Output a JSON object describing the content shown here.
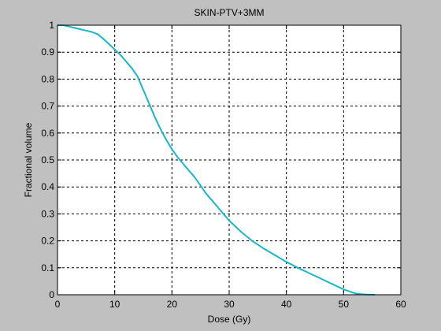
{
  "chart_data": {
    "type": "line",
    "title": "SKIN-PTV+3MM",
    "xlabel": "Dose (Gy)",
    "ylabel": "Fractional volume",
    "xlim": [
      0,
      60
    ],
    "ylim": [
      0,
      1
    ],
    "xticks": [
      0,
      10,
      20,
      30,
      40,
      50,
      60
    ],
    "yticks": [
      0,
      0.1,
      0.2,
      0.3,
      0.4,
      0.5,
      0.6,
      0.7,
      0.8,
      0.9,
      1
    ],
    "xtick_labels": [
      "0",
      "10",
      "20",
      "30",
      "40",
      "50",
      "60"
    ],
    "ytick_labels": [
      "0",
      "0.1",
      "0.2",
      "0.3",
      "0.4",
      "0.5",
      "0.6",
      "0.7",
      "0.8",
      "0.9",
      "1"
    ],
    "grid": true,
    "grid_style": "dashed",
    "colors": {
      "figure_bg": "#c0c0c0",
      "axes_bg": "#ffffff",
      "line": "#17b8c8",
      "grid": "#000000"
    },
    "series": [
      {
        "x": [
          0,
          1,
          2,
          3,
          4,
          5,
          6,
          7,
          8,
          9,
          10,
          11,
          12,
          13,
          14,
          15,
          16,
          17,
          18,
          19,
          20,
          21,
          22,
          23,
          24,
          25,
          26,
          27,
          28,
          29,
          30,
          32,
          34,
          36,
          38,
          40,
          42,
          44,
          46,
          48,
          50,
          52,
          53,
          54,
          55,
          55.5
        ],
        "y": [
          1.0,
          1.0,
          0.995,
          0.99,
          0.985,
          0.98,
          0.975,
          0.967,
          0.95,
          0.93,
          0.91,
          0.89,
          0.865,
          0.84,
          0.81,
          0.76,
          0.71,
          0.66,
          0.615,
          0.575,
          0.54,
          0.51,
          0.485,
          0.46,
          0.435,
          0.405,
          0.375,
          0.35,
          0.325,
          0.3,
          0.275,
          0.235,
          0.2,
          0.172,
          0.147,
          0.122,
          0.1,
          0.08,
          0.06,
          0.04,
          0.02,
          0.005,
          0.002,
          0.001,
          0.0,
          0.0
        ]
      }
    ]
  }
}
